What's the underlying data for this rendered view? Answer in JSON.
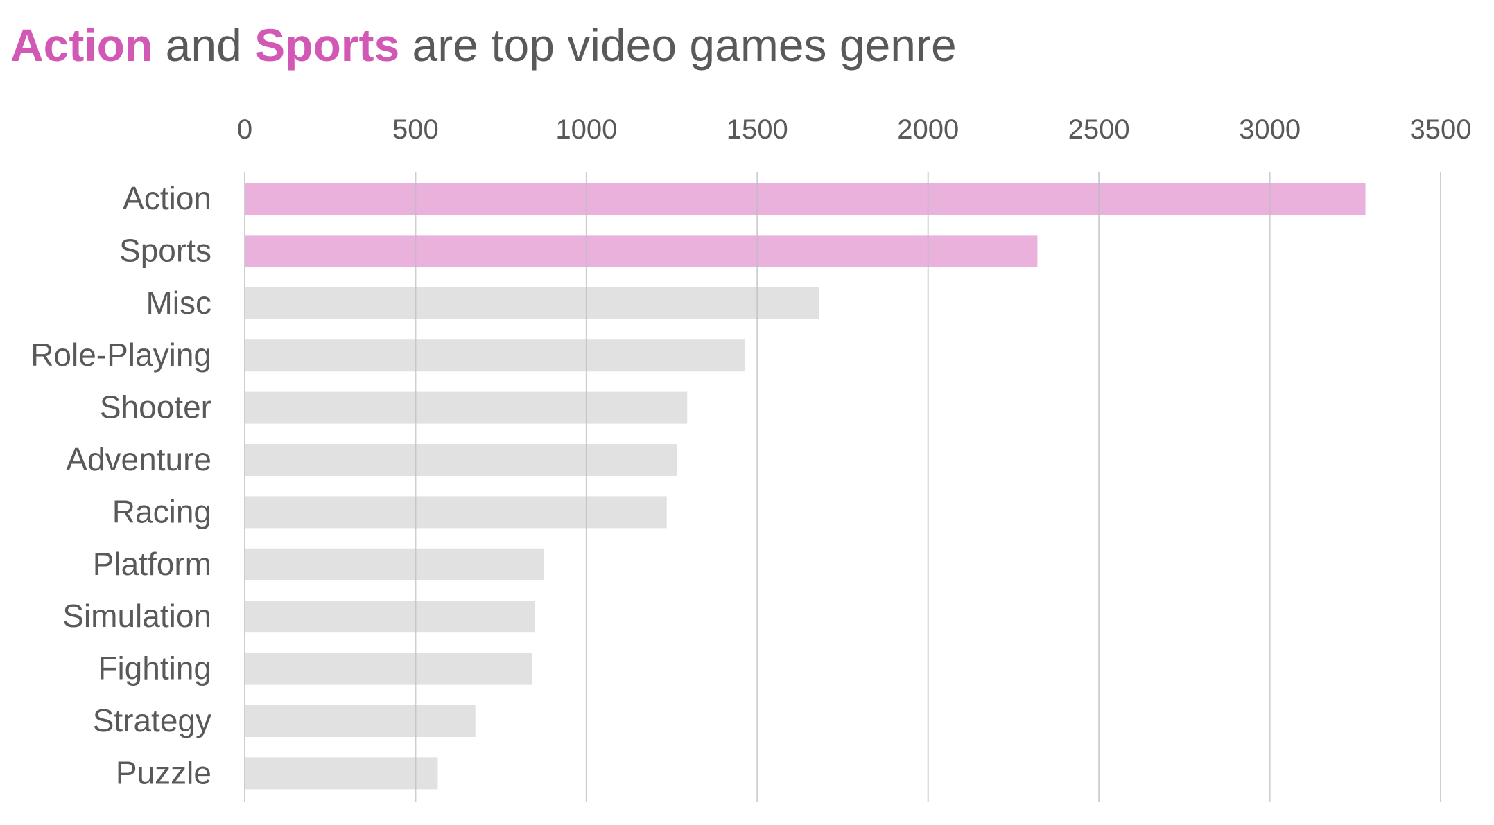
{
  "chart_data": {
    "type": "bar",
    "orientation": "horizontal",
    "title_parts": [
      {
        "text": "Action",
        "highlight": true
      },
      {
        "text": " and ",
        "highlight": false
      },
      {
        "text": "Sports",
        "highlight": true
      },
      {
        "text": " are top video games genre",
        "highlight": false
      }
    ],
    "xlabel": "",
    "ylabel": "",
    "categories": [
      "Action",
      "Sports",
      "Misc",
      "Role-Playing",
      "Shooter",
      "Adventure",
      "Racing",
      "Platform",
      "Simulation",
      "Fighting",
      "Strategy",
      "Puzzle"
    ],
    "values": [
      3280,
      2320,
      1680,
      1465,
      1295,
      1265,
      1235,
      875,
      850,
      840,
      675,
      565
    ],
    "highlighted": [
      "Action",
      "Sports"
    ],
    "xlim": [
      0,
      3500
    ],
    "xticks": [
      0,
      500,
      1000,
      1500,
      2000,
      2500,
      3000,
      3500
    ],
    "x_axis_position": "top",
    "grid": "vertical",
    "legend": "none",
    "colors": {
      "highlight_bar": "#e9b1dc",
      "default_bar": "#e1e1e1",
      "highlight_text": "#d158b4",
      "text": "#595959",
      "gridline": "#bdbdbd"
    }
  }
}
